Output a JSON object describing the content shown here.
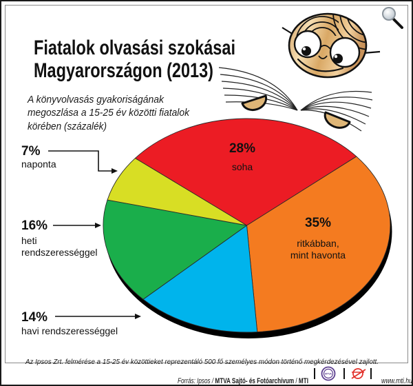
{
  "header": {
    "title_line1": "Fiatalok olvasási szokásai",
    "title_line2": "Magyarországon (2013)",
    "subtitle_lines": [
      "A könyvolvasás gyakoriságának",
      "megoszlása a 15-25 év közötti fiatalok",
      "körében (százalék)"
    ]
  },
  "toolbar": {
    "zoom_icon": "magnifier-icon"
  },
  "labels": {
    "daily": {
      "percent": "7%",
      "text": "naponta"
    },
    "weekly": {
      "percent": "16%",
      "text_line1": "heti",
      "text_line2": "rendszerességgel"
    },
    "monthly": {
      "percent": "14%",
      "text": "havi rendszerességgel"
    },
    "never": {
      "percent": "28%",
      "text": "soha"
    },
    "rarely": {
      "percent": "35%",
      "text_line1": "ritkábban,",
      "text_line2": "mint havonta"
    }
  },
  "footer": {
    "note": "Az Ipsos Zrt. felmérése a 15-25 év közöttieket reprezentáló 500 fő személyes módon történő megkérdezésével zajlott.",
    "source_prefix": "Forrás: Ipsos / ",
    "source_org": "MTVA Sajtó- és Fotóarchívum",
    "source_sep": " / ",
    "source_mti": "MTI",
    "mtva_logo_text": "MTVA",
    "website": "www.mti.hu"
  },
  "chart_data": {
    "type": "pie",
    "title": "Fiatalok olvasási szokásai Magyarországon (2013)",
    "subtitle": "A könyvolvasás gyakoriságának megoszlása a 15-25 év közötti fiatalok körében (százalék)",
    "unit": "%",
    "categories": [
      "ritkábban, mint havonta",
      "havi rendszerességgel",
      "heti rendszerességgel",
      "naponta",
      "soha"
    ],
    "values": [
      35,
      14,
      16,
      7,
      28
    ],
    "colors": [
      "#F47B20",
      "#00B4EC",
      "#1AAE4B",
      "#D8DE24",
      "#EC1C24"
    ],
    "legend": "none (direct labels)"
  }
}
